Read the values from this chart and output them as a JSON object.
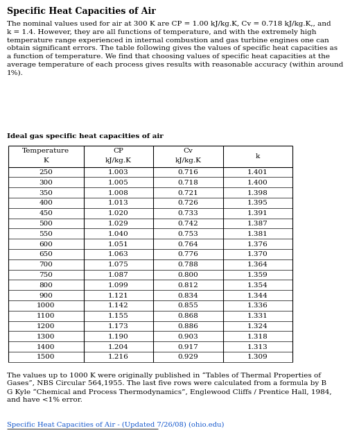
{
  "title": "Specific Heat Capacities of Air",
  "intro_text": "The nominal values used for air at 300 K are CP = 1.00 kJ/kg.K, Cv = 0.718 kJ/kg.K,, and\nk = 1.4. However, they are all functions of temperature, and with the extremely high\ntemperature range experienced in internal combustion and gas turbine engines one can\nobtain significant errors. The table following gives the values of specific heat capacities as\na function of temperature. We find that choosing values of specific heat capacities at the\naverage temperature of each process gives results with reasonable accuracy (within around\n1%).",
  "table_title": "Ideal gas specific heat capacities of air",
  "col_header_line1": [
    "Temperature",
    "CP",
    "Cv",
    "k"
  ],
  "col_header_line2": [
    "K",
    "kJ/kg.K",
    "kJ/kg.K",
    ""
  ],
  "rows": [
    [
      250,
      1.003,
      0.716,
      1.401
    ],
    [
      300,
      1.005,
      0.718,
      1.4
    ],
    [
      350,
      1.008,
      0.721,
      1.398
    ],
    [
      400,
      1.013,
      0.726,
      1.395
    ],
    [
      450,
      1.02,
      0.733,
      1.391
    ],
    [
      500,
      1.029,
      0.742,
      1.387
    ],
    [
      550,
      1.04,
      0.753,
      1.381
    ],
    [
      600,
      1.051,
      0.764,
      1.376
    ],
    [
      650,
      1.063,
      0.776,
      1.37
    ],
    [
      700,
      1.075,
      0.788,
      1.364
    ],
    [
      750,
      1.087,
      0.8,
      1.359
    ],
    [
      800,
      1.099,
      0.812,
      1.354
    ],
    [
      900,
      1.121,
      0.834,
      1.344
    ],
    [
      1000,
      1.142,
      0.855,
      1.336
    ],
    [
      1100,
      1.155,
      0.868,
      1.331
    ],
    [
      1200,
      1.173,
      0.886,
      1.324
    ],
    [
      1300,
      1.19,
      0.903,
      1.318
    ],
    [
      1400,
      1.204,
      0.917,
      1.313
    ],
    [
      1500,
      1.216,
      0.929,
      1.309
    ]
  ],
  "footer_text": "The values up to 1000 K were originally published in “Tables of Thermal Properties of\nGases”, NBS Circular 564,1955. The last five rows were calculated from a formula by B\nG Kyle “Chemical and Process Thermodynamics”, Englewood Cliffs / Prentice Hall, 1984,\nand have <1% error.",
  "link_text": "Specific Heat Capacities of Air - (Updated 7/26/08) (ohio.edu)",
  "background_color": "#ffffff",
  "text_color": "#000000",
  "link_color": "#1155cc",
  "table_border_color": "#000000",
  "font_size_title": 9,
  "font_size_body": 7.5,
  "font_size_table": 7.5
}
